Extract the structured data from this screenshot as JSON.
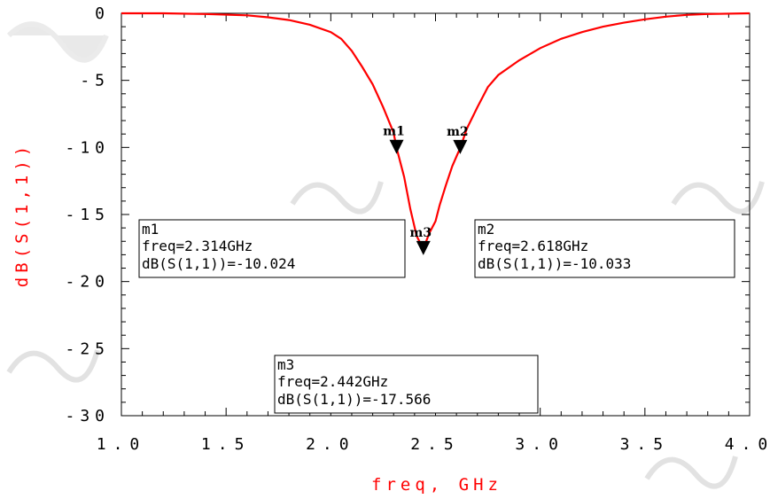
{
  "chart_data": {
    "type": "line",
    "xlabel": "freq, GHz",
    "ylabel": "dB(S(1,1))",
    "xlim": [
      1.0,
      4.0
    ],
    "ylim": [
      -30,
      0
    ],
    "xticks": [
      "1.0",
      "1.5",
      "2.0",
      "2.5",
      "3.0",
      "3.5",
      "4.0"
    ],
    "yticks": [
      "0",
      "-5",
      "-10",
      "-15",
      "-20",
      "-25",
      "-30"
    ],
    "grid": false,
    "series": [
      {
        "color": "#ff0000",
        "x": [
          1.0,
          1.2,
          1.4,
          1.6,
          1.7,
          1.8,
          1.9,
          2.0,
          2.05,
          2.1,
          2.15,
          2.2,
          2.25,
          2.3,
          2.314,
          2.35,
          2.38,
          2.41,
          2.442,
          2.47,
          2.5,
          2.52,
          2.55,
          2.58,
          2.618,
          2.65,
          2.7,
          2.75,
          2.8,
          2.9,
          3.0,
          3.1,
          3.2,
          3.3,
          3.4,
          3.5,
          3.6,
          3.7,
          3.8,
          4.0
        ],
        "y": [
          0,
          0,
          -0.05,
          -0.15,
          -0.3,
          -0.5,
          -0.85,
          -1.4,
          -1.9,
          -2.8,
          -4.0,
          -5.3,
          -7.0,
          -8.9,
          -10.024,
          -12.2,
          -14.6,
          -16.6,
          -17.566,
          -16.4,
          -15.5,
          -14.3,
          -12.8,
          -11.4,
          -10.033,
          -8.6,
          -7.0,
          -5.5,
          -4.6,
          -3.5,
          -2.6,
          -1.9,
          -1.4,
          -1.0,
          -0.7,
          -0.45,
          -0.25,
          -0.12,
          -0.05,
          0
        ]
      }
    ],
    "markers": [
      {
        "name": "m1",
        "x": 2.314,
        "y": -10.024,
        "freq_text": "freq=2.314GHz",
        "value_text": "dB(S(1,1))=-10.024"
      },
      {
        "name": "m2",
        "x": 2.618,
        "y": -10.033,
        "freq_text": "freq=2.618GHz",
        "value_text": "dB(S(1,1))=-10.033"
      },
      {
        "name": "m3",
        "x": 2.442,
        "y": -17.566,
        "freq_text": "freq=2.442GHz",
        "value_text": "dB(S(1,1))=-17.566"
      }
    ]
  }
}
